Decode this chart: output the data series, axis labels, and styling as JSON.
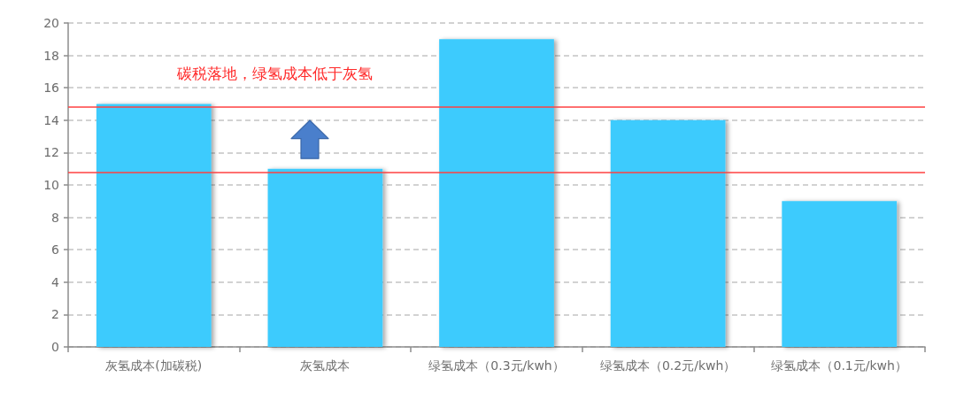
{
  "chart_data": {
    "type": "bar",
    "categories": [
      "灰氢成本(加碳税)",
      "灰氢成本",
      "绿氢成本（0.3元/kwh）",
      "绿氢成本（0.2元/kwh）",
      "绿氢成本（0.1元/kwh）"
    ],
    "values": [
      15,
      11,
      19,
      14,
      9
    ],
    "color": "#3ccbfd",
    "ylim": [
      0,
      20
    ],
    "yticks": [
      0,
      2,
      4,
      6,
      8,
      10,
      12,
      14,
      16,
      18,
      20
    ],
    "grid": "y",
    "ref_lines": [
      {
        "axis": "y",
        "value": 14.8,
        "color": "#ff4040"
      },
      {
        "axis": "y",
        "value": 10.8,
        "color": "#ff4040"
      }
    ],
    "annotations": [
      "碳税落地，绿氢成本低于灰氢"
    ]
  }
}
